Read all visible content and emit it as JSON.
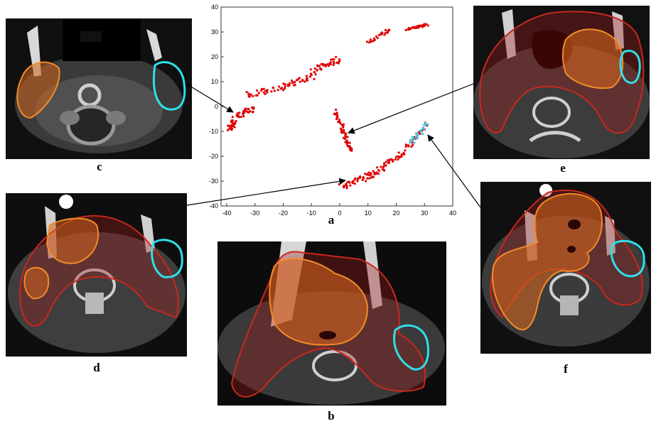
{
  "labels": {
    "a": "a",
    "b": "b",
    "c": "c",
    "d": "d",
    "e": "e",
    "f": "f"
  },
  "colors": {
    "outer_roi": "#c8281e",
    "inner_roi": "#f08c28",
    "cyan_roi": "#2ee0e8",
    "red_points": "#e00000",
    "cyan_points": "#39c6e6"
  },
  "chart_data": {
    "type": "scatter",
    "title": "",
    "xlabel": "",
    "ylabel": "",
    "xlim": [
      -42,
      40
    ],
    "ylim": [
      -40,
      40
    ],
    "xticks": [
      -40,
      -30,
      -20,
      -10,
      0,
      10,
      20,
      30,
      40
    ],
    "yticks": [
      40,
      30,
      20,
      10,
      0,
      -10,
      -20,
      -30,
      -40
    ],
    "series": [
      {
        "color": "#e00000",
        "segments": [
          {
            "x0": -39,
            "y0": -9,
            "x1": -37,
            "y1": -6,
            "n": 28,
            "jx": 0.9,
            "jy": 1.2
          },
          {
            "x0": -37,
            "y0": -4,
            "x1": -30,
            "y1": -1,
            "n": 30,
            "jx": 1.0,
            "jy": 1.2
          },
          {
            "x0": -33,
            "y0": 5,
            "x1": -20,
            "y1": 7,
            "n": 30,
            "jx": 1.2,
            "jy": 1.3
          },
          {
            "x0": -20,
            "y0": 8,
            "x1": -10,
            "y1": 12,
            "n": 30,
            "jx": 1.2,
            "jy": 1.2
          },
          {
            "x0": -10,
            "y0": 14,
            "x1": 0,
            "y1": 19,
            "n": 40,
            "jx": 1.0,
            "jy": 1.5
          },
          {
            "x0": 10,
            "y0": 26,
            "x1": 18,
            "y1": 31,
            "n": 22,
            "jx": 0.6,
            "jy": 0.8
          },
          {
            "x0": 24,
            "y0": 31,
            "x1": 31,
            "y1": 33,
            "n": 30,
            "jx": 0.6,
            "jy": 0.5
          },
          {
            "x0": -2,
            "y0": -2,
            "x1": 2,
            "y1": -10,
            "n": 26,
            "jx": 0.7,
            "jy": 1.2
          },
          {
            "x0": 1,
            "y0": -10,
            "x1": 4,
            "y1": -18,
            "n": 26,
            "jx": 0.6,
            "jy": 1.2
          },
          {
            "x0": 1,
            "y0": -32,
            "x1": 12,
            "y1": -27,
            "n": 45,
            "jx": 1.3,
            "jy": 1.2
          },
          {
            "x0": 12,
            "y0": -27,
            "x1": 22,
            "y1": -19,
            "n": 40,
            "jx": 1.0,
            "jy": 1.2
          },
          {
            "x0": 22,
            "y0": -19,
            "x1": 31,
            "y1": -7,
            "n": 25,
            "jx": 0.8,
            "jy": 1.0
          }
        ]
      },
      {
        "color": "#39c6e6",
        "segments": [
          {
            "x0": 25,
            "y0": -15,
            "x1": 31,
            "y1": -7,
            "n": 22,
            "jx": 0.7,
            "jy": 1.0
          }
        ]
      }
    ]
  }
}
